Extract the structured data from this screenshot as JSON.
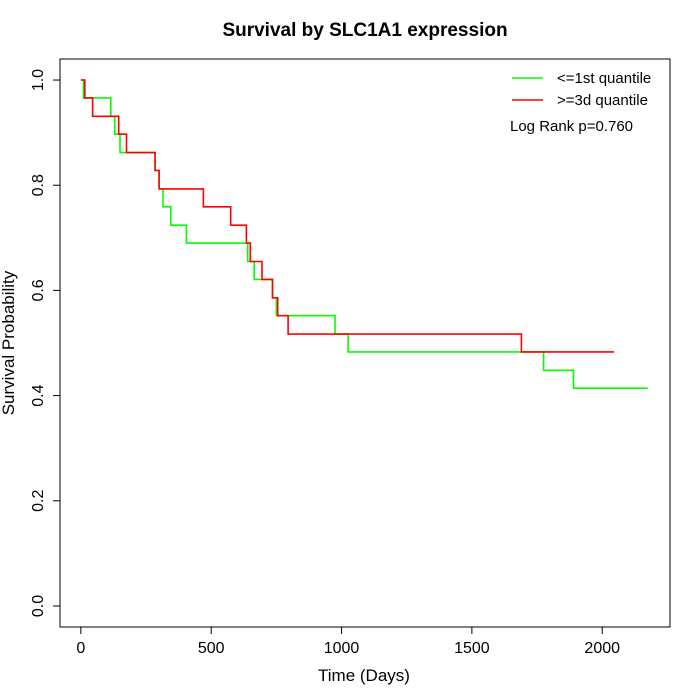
{
  "chart_data": {
    "type": "line",
    "title": "Survival by SLC1A1 expression",
    "xlabel": "Time (Days)",
    "ylabel": "Survival Probability",
    "xlim": [
      -80,
      2260
    ],
    "ylim": [
      -0.04,
      1.04
    ],
    "x_ticks": [
      0,
      500,
      1000,
      1500,
      2000
    ],
    "y_ticks": [
      0.0,
      0.2,
      0.4,
      0.6,
      0.8,
      1.0
    ],
    "x_tick_labels": [
      "0",
      "500",
      "1000",
      "1500",
      "2000"
    ],
    "y_tick_labels": [
      "0.0",
      "0.2",
      "0.4",
      "0.6",
      "0.8",
      "1.0"
    ],
    "grid": false,
    "legend_position": "top-right",
    "annotation": "Log Rank p=0.760",
    "series": [
      {
        "name": "<=1st quantile",
        "color": "#00ff00",
        "step_x": [
          0,
          10,
          115,
          130,
          150,
          285,
          300,
          315,
          345,
          405,
          640,
          665,
          735,
          750,
          775,
          975,
          1025,
          1775,
          1890,
          2175
        ],
        "step_y": [
          1.0,
          0.966,
          0.931,
          0.897,
          0.862,
          0.828,
          0.793,
          0.759,
          0.724,
          0.69,
          0.655,
          0.621,
          0.586,
          0.552,
          0.552,
          0.517,
          0.483,
          0.448,
          0.414,
          0.414
        ]
      },
      {
        "name": ">=3d quantile",
        "color": "#ff0000",
        "step_x": [
          0,
          15,
          45,
          145,
          175,
          270,
          285,
          300,
          470,
          575,
          635,
          650,
          695,
          735,
          755,
          795,
          1690,
          2045
        ],
        "step_y": [
          1.0,
          0.966,
          0.931,
          0.897,
          0.862,
          0.862,
          0.828,
          0.793,
          0.759,
          0.724,
          0.69,
          0.655,
          0.621,
          0.586,
          0.552,
          0.517,
          0.483,
          0.483
        ]
      }
    ]
  }
}
